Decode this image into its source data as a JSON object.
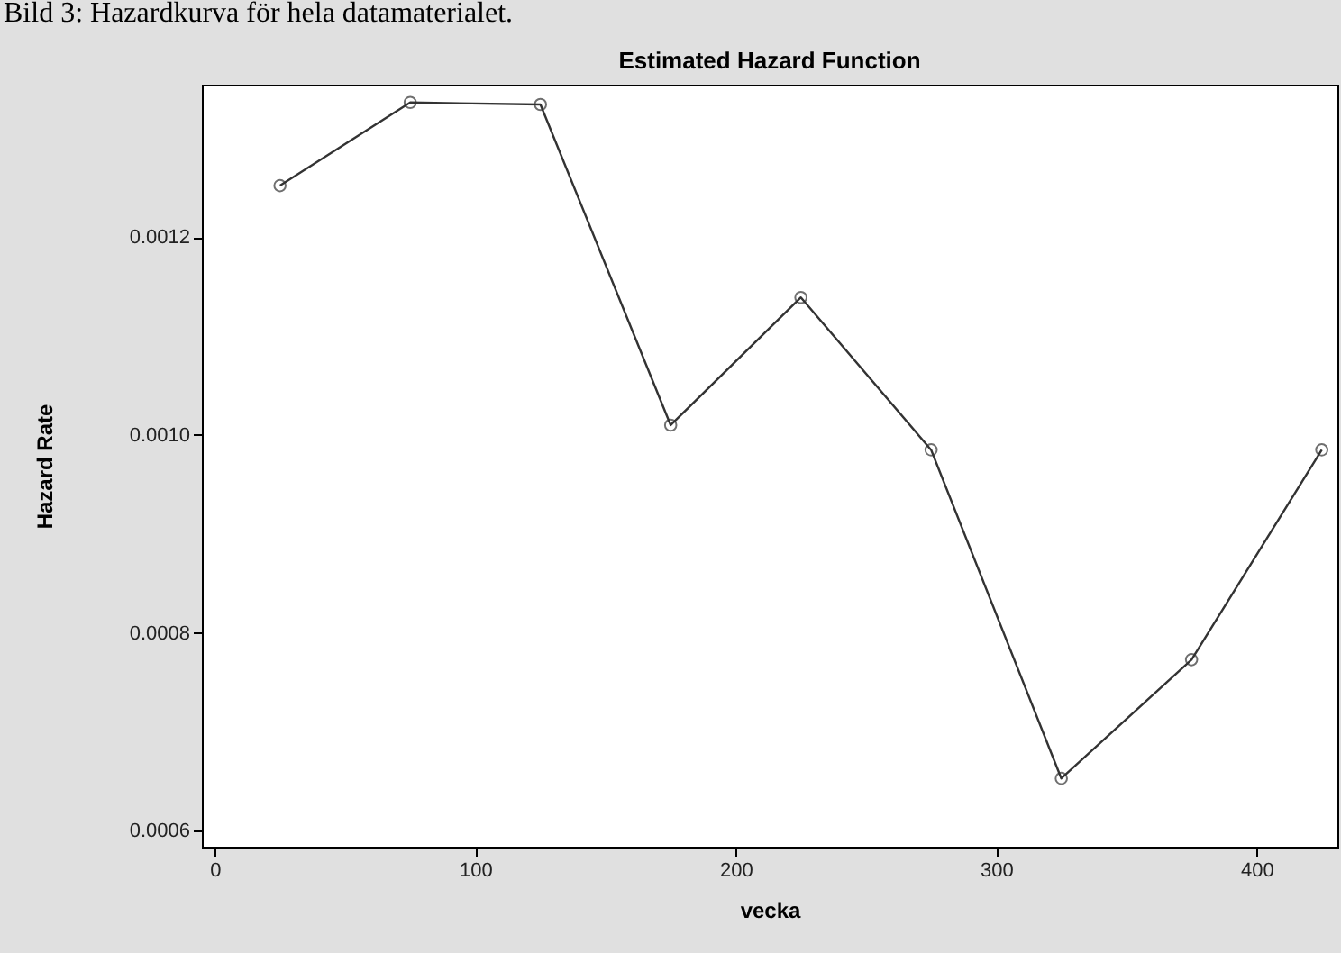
{
  "chart_data": {
    "type": "line",
    "title": "Estimated Hazard Function",
    "xlabel": "vecka",
    "ylabel": "Hazard Rate",
    "annotations": [
      "Bild 3: Hazardkurva för hela datamaterialet."
    ],
    "x": [
      25,
      75,
      125,
      175,
      225,
      275,
      325,
      375,
      425
    ],
    "series": [
      {
        "color": "#333333",
        "values": [
          0.001252,
          0.001336,
          0.001334,
          0.00101,
          0.001139,
          0.000985,
          0.000653,
          0.000773,
          0.000985
        ]
      }
    ],
    "xlim": [
      -5,
      431
    ],
    "xticks": [
      0,
      100,
      200,
      300,
      400
    ],
    "ylim": [
      0.000584,
      0.001354
    ],
    "yticks": [
      {
        "value": 0.0006,
        "label": "0.0006"
      },
      {
        "value": 0.0008,
        "label": "0.0008"
      },
      {
        "value": 0.001,
        "label": "0.0010"
      },
      {
        "value": 0.0012,
        "label": "0.0012"
      }
    ],
    "marker": "circle",
    "line_style": "solid",
    "grid": false,
    "legend": false
  }
}
